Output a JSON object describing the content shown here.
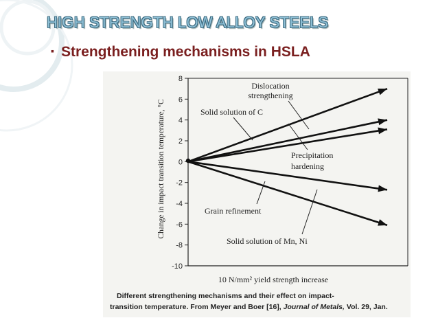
{
  "slide": {
    "title": "HIGH STRENGTH LOW ALLOY STEELS",
    "bullet": "Strengthening mechanisms in HSLA",
    "bullet_glyph": "▪"
  },
  "chart_data": {
    "type": "line",
    "ylabel": "Change in impact transition temperature, °C",
    "xlabel": "10 N/mm² yield strength increase",
    "ylim": [
      -10,
      8
    ],
    "yticks": [
      8,
      6,
      4,
      2,
      0,
      -2,
      -4,
      -6,
      -8,
      -10
    ],
    "xlim": [
      0,
      1
    ],
    "series": [
      {
        "name": "Dislocation strengthening",
        "x": [
          0,
          1
        ],
        "y": [
          0,
          7.0
        ]
      },
      {
        "name": "Solid solution of C",
        "x": [
          0,
          1
        ],
        "y": [
          0,
          4.0
        ]
      },
      {
        "name": "Precipitation hardening",
        "x": [
          0,
          1
        ],
        "y": [
          0,
          3.1
        ]
      },
      {
        "name": "Grain refinement",
        "x": [
          0,
          1
        ],
        "y": [
          0,
          -2.7
        ]
      },
      {
        "name": "Solid solution of Mn, Ni",
        "x": [
          0,
          1
        ],
        "y": [
          0,
          -6.1
        ]
      }
    ],
    "caption_line1": "Different strengthening mechanisms and their effect on impact-",
    "caption_line2": "transition temperature. From Meyer and Boer [16],",
    "caption_journal": "Journal of Metals,",
    "caption_tail": "Vol. 29, Jan."
  }
}
